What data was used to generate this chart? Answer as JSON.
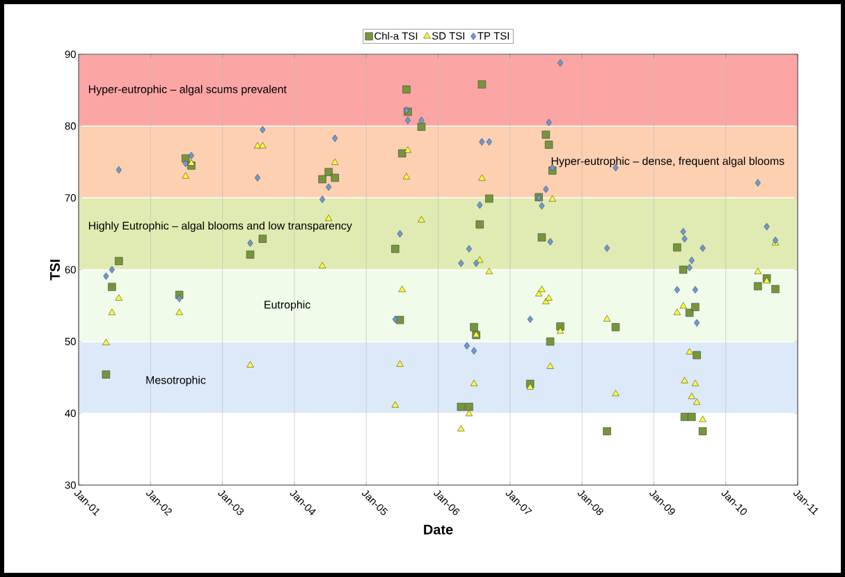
{
  "chart_data": {
    "type": "scatter",
    "xlabel": "Date",
    "ylabel": "TSI",
    "xlim": [
      "2001-01-01",
      "2011-01-01"
    ],
    "xticks": [
      {
        "value": "2001-01-01",
        "label": "Jan-01"
      },
      {
        "value": "2002-01-01",
        "label": "Jan-02"
      },
      {
        "value": "2003-01-01",
        "label": "Jan-03"
      },
      {
        "value": "2004-01-01",
        "label": "Jan-04"
      },
      {
        "value": "2005-01-01",
        "label": "Jan-05"
      },
      {
        "value": "2006-01-01",
        "label": "Jan-06"
      },
      {
        "value": "2007-01-01",
        "label": "Jan-07"
      },
      {
        "value": "2008-01-01",
        "label": "Jan-08"
      },
      {
        "value": "2009-01-01",
        "label": "Jan-09"
      },
      {
        "value": "2010-01-01",
        "label": "Jan-10"
      },
      {
        "value": "2011-01-01",
        "label": "Jan-11"
      }
    ],
    "ylim": [
      30,
      90
    ],
    "yticks": [
      30,
      40,
      50,
      60,
      70,
      80,
      90
    ],
    "grid": "x",
    "legend": "top",
    "bands": [
      {
        "axis": "y",
        "from": 40,
        "to": 50,
        "label": "Mesotrophic",
        "color": "#dce9f8"
      },
      {
        "axis": "y",
        "from": 50,
        "to": 60,
        "label": "Eutrophic",
        "color": "#f0fbea"
      },
      {
        "axis": "y",
        "from": 60,
        "to": 70,
        "label": "Highly Eutrophic – algal blooms and low transparency",
        "color": "#dfebb2"
      },
      {
        "axis": "y",
        "from": 70,
        "to": 80,
        "label": "Hyper-eutrophic – dense, frequent algal blooms",
        "color": "#fdd0b2"
      },
      {
        "axis": "y",
        "from": 80,
        "to": 90,
        "label": "Hyper-eutrophic – algal scums prevalent",
        "color": "#fca5a5"
      }
    ],
    "series": [
      {
        "name": "Chl-a TSI",
        "color": "#76963a",
        "marker": "square",
        "x": [
          "2001-05-20",
          "2001-06-19",
          "2001-07-24",
          "2002-05-27",
          "2002-06-28",
          "2002-07-27",
          "2003-05-22",
          "2003-07-24",
          "2004-05-22",
          "2004-06-23",
          "2004-07-25",
          "2005-05-28",
          "2005-06-21",
          "2005-07-02",
          "2005-07-24",
          "2005-07-31",
          "2005-10-08",
          "2006-04-27",
          "2006-06-07",
          "2006-07-02",
          "2006-07-13",
          "2006-07-31",
          "2006-08-11",
          "2006-09-17",
          "2007-04-13",
          "2007-05-27",
          "2007-06-11",
          "2007-07-02",
          "2007-07-17",
          "2007-07-24",
          "2007-08-04",
          "2007-09-13",
          "2008-05-07",
          "2008-06-20",
          "2009-04-29",
          "2009-05-30",
          "2009-07-01",
          "2009-07-30",
          "2009-08-07",
          "2009-06-06",
          "2009-07-12",
          "2009-09-06",
          "2010-06-13",
          "2010-07-28",
          "2010-09-10"
        ],
        "values": [
          45.4,
          57.6,
          61.2,
          56.5,
          75.5,
          74.5,
          62.1,
          64.3,
          72.6,
          73.6,
          72.8,
          62.9,
          53.0,
          76.2,
          85.1,
          82.0,
          79.9,
          40.9,
          40.9,
          52.0,
          50.9,
          66.3,
          85.8,
          69.9,
          44.1,
          70.1,
          64.5,
          78.8,
          77.4,
          50.0,
          73.8,
          52.1,
          37.5,
          52.0,
          63.1,
          60.0,
          54.0,
          54.8,
          48.1,
          39.5,
          39.5,
          37.5,
          57.7,
          58.8,
          57.3
        ]
      },
      {
        "name": "SD TSI",
        "color": "#ffff33",
        "marker": "triangle",
        "x": [
          "2001-05-20",
          "2001-06-19",
          "2001-07-24",
          "2002-05-27",
          "2002-06-28",
          "2002-07-27",
          "2003-05-22",
          "2003-06-28",
          "2003-07-24",
          "2004-05-22",
          "2004-06-23",
          "2004-07-25",
          "2005-05-28",
          "2005-06-21",
          "2005-07-02",
          "2005-07-24",
          "2005-07-31",
          "2005-10-08",
          "2006-04-27",
          "2006-06-07",
          "2006-07-02",
          "2006-07-13",
          "2006-07-31",
          "2006-08-11",
          "2006-09-17",
          "2007-04-13",
          "2007-05-27",
          "2007-06-11",
          "2007-07-02",
          "2007-07-17",
          "2007-07-24",
          "2007-08-04",
          "2007-09-13",
          "2008-05-07",
          "2008-06-20",
          "2009-04-29",
          "2009-05-30",
          "2009-06-06",
          "2009-07-01",
          "2009-07-12",
          "2009-07-30",
          "2009-08-07",
          "2009-09-06",
          "2010-06-13",
          "2010-07-28",
          "2010-09-10"
        ],
        "values": [
          49.8,
          54.0,
          56.0,
          54.0,
          73.0,
          74.8,
          46.7,
          77.2,
          77.2,
          60.5,
          67.1,
          74.9,
          41.1,
          46.8,
          57.2,
          72.9,
          76.6,
          66.9,
          37.8,
          39.9,
          44.1,
          50.9,
          61.3,
          72.7,
          59.7,
          43.6,
          56.6,
          57.2,
          55.5,
          56.0,
          46.5,
          69.8,
          51.4,
          53.1,
          42.7,
          54.0,
          54.9,
          44.5,
          48.5,
          42.3,
          44.1,
          41.5,
          39.1,
          59.7,
          58.4,
          63.7
        ]
      },
      {
        "name": "TP TSI",
        "color": "#6a9ad8",
        "marker": "diamond",
        "x": [
          "2001-05-20",
          "2001-06-19",
          "2001-07-24",
          "2002-05-27",
          "2002-06-28",
          "2002-07-27",
          "2003-05-22",
          "2003-06-28",
          "2003-07-24",
          "2004-05-22",
          "2004-06-23",
          "2004-07-25",
          "2005-05-28",
          "2005-06-21",
          "2005-07-24",
          "2005-07-31",
          "2005-10-08",
          "2006-04-27",
          "2006-05-27",
          "2006-06-07",
          "2006-07-02",
          "2006-07-13",
          "2006-07-31",
          "2006-08-11",
          "2006-09-17",
          "2007-04-13",
          "2007-05-27",
          "2007-06-11",
          "2007-07-02",
          "2007-07-17",
          "2007-07-24",
          "2007-08-04",
          "2007-09-13",
          "2008-05-07",
          "2008-06-20",
          "2009-04-29",
          "2009-05-30",
          "2009-06-06",
          "2009-07-01",
          "2009-07-12",
          "2009-07-30",
          "2009-08-07",
          "2009-09-06",
          "2010-06-13",
          "2010-07-28",
          "2010-09-10"
        ],
        "values": [
          59.1,
          60.0,
          73.9,
          56.0,
          74.8,
          75.9,
          63.7,
          72.8,
          79.5,
          69.8,
          71.5,
          78.3,
          53.1,
          65.0,
          82.2,
          80.8,
          80.8,
          60.9,
          49.4,
          62.9,
          48.7,
          60.9,
          69.0,
          77.8,
          77.8,
          53.1,
          70.0,
          68.9,
          71.2,
          80.5,
          63.9,
          74.2,
          88.8,
          63.0,
          74.2,
          57.2,
          65.3,
          64.3,
          60.3,
          61.3,
          57.2,
          52.6,
          63.0,
          72.1,
          66.0,
          64.1
        ]
      }
    ]
  }
}
